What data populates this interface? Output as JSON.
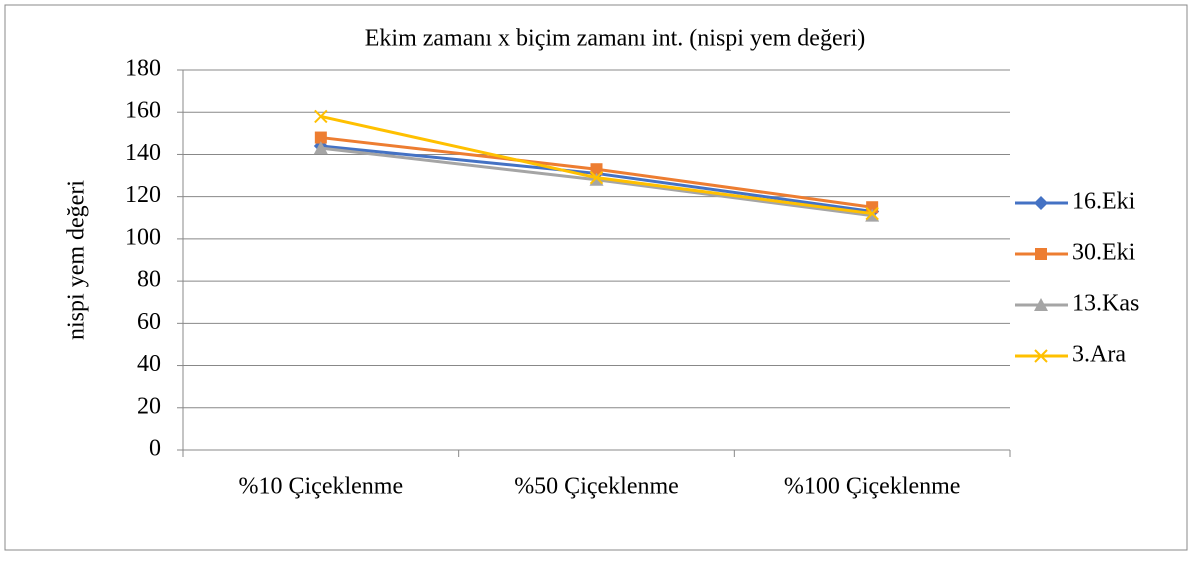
{
  "chart_data": {
    "type": "line",
    "title": "Ekim zamanı x biçim zamanı int. (nispi yem değeri)",
    "y_label": "nispi yem değeri",
    "categories": [
      "%10 Çiçeklenme",
      "%50 Çiçeklenme",
      "%100 Çiçeklenme"
    ],
    "series": [
      {
        "name": "16.Eki",
        "color": "#4472c4",
        "marker": "diamond",
        "values": [
          144,
          131,
          113
        ]
      },
      {
        "name": "30.Eki",
        "color": "#ed7d31",
        "marker": "square",
        "values": [
          148,
          133,
          115
        ]
      },
      {
        "name": "13.Kas",
        "color": "#a5a5a5",
        "marker": "triangle",
        "values": [
          143,
          128,
          111
        ]
      },
      {
        "name": "3.Ara",
        "color": "#ffc000",
        "marker": "x",
        "values": [
          158,
          129,
          112
        ]
      }
    ],
    "ylim": [
      0,
      180
    ],
    "yticks": [
      0,
      20,
      40,
      60,
      80,
      100,
      120,
      140,
      160,
      180
    ],
    "grid": true,
    "legend": "right"
  }
}
